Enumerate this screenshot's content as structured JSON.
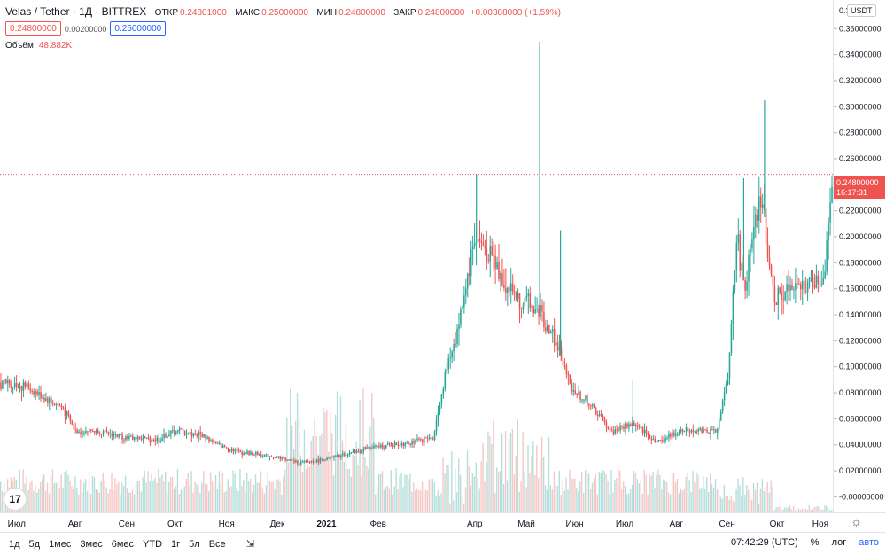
{
  "header": {
    "symbol": "Velas / Tether · 1Д · BITTREX",
    "open_label": "ОТКР",
    "open_value": "0.24801000",
    "high_label": "МАКС",
    "high_value": "0.25000000",
    "low_label": "МИН",
    "low_value": "0.24800000",
    "close_label": "ЗАКР",
    "close_value": "0.24800000",
    "change": "+0.00388000 (+1.59%)"
  },
  "quote": {
    "bid": "0.24800000",
    "spread": "0.00200000",
    "ask": "0.25000000"
  },
  "volume": {
    "label": "Объём",
    "value": "48.882K"
  },
  "currency": "USDT",
  "last_price": {
    "price": "0.24800000",
    "countdown": "16:17:31"
  },
  "toolbar": {
    "ranges": [
      "1д",
      "5д",
      "1мес",
      "3мес",
      "6мес",
      "YTD",
      "1г",
      "5л",
      "Все"
    ],
    "time": "07:42:29 (UTC)",
    "percent": "%",
    "log": "лог",
    "auto": "авто"
  },
  "colors": {
    "up": "#26a69a",
    "down": "#ef5350",
    "last_price_line": "#ef5350",
    "volume_up": "#b2dfdb",
    "volume_down": "#f7c6c5"
  },
  "chart_data": {
    "type": "candlestick",
    "y_ticks": [
      "0.36000000",
      "0.34000000",
      "0.32000000",
      "0.30000000",
      "0.28000000",
      "0.26000000",
      "0.24000000",
      "0.22000000",
      "0.20000000",
      "0.18000000",
      "0.16000000",
      "0.14000000",
      "0.12000000",
      "0.10000000",
      "0.08000000",
      "0.06000000",
      "0.04000000",
      "0.02000000",
      "-0.00000000"
    ],
    "y_top_partial": "0.3",
    "ylim": [
      -0.012,
      0.382
    ],
    "x_ticks": [
      "Июл",
      "Авг",
      "Сен",
      "Окт",
      "Ноя",
      "Дек",
      "2021",
      "Фев",
      "Апр",
      "Май",
      "Июн",
      "Июл",
      "Авг",
      "Сен",
      "Окт",
      "Ноя"
    ],
    "price_path": [
      {
        "t": 0,
        "v": 0.088
      },
      {
        "t": 0.03,
        "v": 0.085
      },
      {
        "t": 0.055,
        "v": 0.075
      },
      {
        "t": 0.075,
        "v": 0.068
      },
      {
        "t": 0.09,
        "v": 0.05
      },
      {
        "t": 0.11,
        "v": 0.051
      },
      {
        "t": 0.15,
        "v": 0.046
      },
      {
        "t": 0.19,
        "v": 0.044
      },
      {
        "t": 0.21,
        "v": 0.051
      },
      {
        "t": 0.245,
        "v": 0.047
      },
      {
        "t": 0.26,
        "v": 0.04
      },
      {
        "t": 0.29,
        "v": 0.034
      },
      {
        "t": 0.33,
        "v": 0.031
      },
      {
        "t": 0.36,
        "v": 0.026
      },
      {
        "t": 0.4,
        "v": 0.03
      },
      {
        "t": 0.44,
        "v": 0.037
      },
      {
        "t": 0.48,
        "v": 0.041
      },
      {
        "t": 0.52,
        "v": 0.045
      },
      {
        "t": 0.535,
        "v": 0.095
      },
      {
        "t": 0.55,
        "v": 0.13
      },
      {
        "t": 0.57,
        "v": 0.2
      },
      {
        "t": 0.59,
        "v": 0.185
      },
      {
        "t": 0.61,
        "v": 0.16
      },
      {
        "t": 0.63,
        "v": 0.15
      },
      {
        "t": 0.65,
        "v": 0.14
      },
      {
        "t": 0.67,
        "v": 0.115
      },
      {
        "t": 0.685,
        "v": 0.085
      },
      {
        "t": 0.71,
        "v": 0.07
      },
      {
        "t": 0.735,
        "v": 0.05
      },
      {
        "t": 0.76,
        "v": 0.056
      },
      {
        "t": 0.79,
        "v": 0.042
      },
      {
        "t": 0.82,
        "v": 0.052
      },
      {
        "t": 0.86,
        "v": 0.05
      },
      {
        "t": 0.875,
        "v": 0.09
      },
      {
        "t": 0.885,
        "v": 0.2
      },
      {
        "t": 0.895,
        "v": 0.16
      },
      {
        "t": 0.915,
        "v": 0.23
      },
      {
        "t": 0.93,
        "v": 0.155
      },
      {
        "t": 0.96,
        "v": 0.16
      },
      {
        "t": 0.99,
        "v": 0.168
      },
      {
        "t": 1.0,
        "v": 0.248
      }
    ],
    "spikes": [
      {
        "t": 0.572,
        "v": 0.248
      },
      {
        "t": 0.648,
        "v": 0.35
      },
      {
        "t": 0.918,
        "v": 0.305
      },
      {
        "t": 0.893,
        "v": 0.245
      },
      {
        "t": 0.76,
        "v": 0.09
      },
      {
        "t": 0.673,
        "v": 0.205
      }
    ]
  }
}
